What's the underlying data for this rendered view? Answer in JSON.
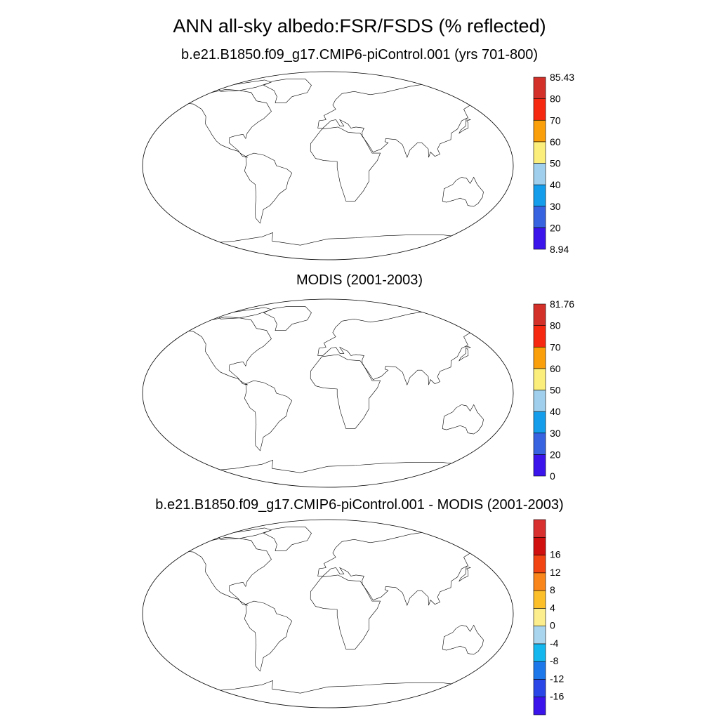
{
  "title": "ANN all-sky albedo:FSR/FSDS (% reflected)",
  "panels": [
    {
      "id": "model",
      "subtitle": "b.e21.B1850.f09_g17.CMIP6-piControl.001 (yrs 701-800)",
      "colorbar": {
        "colors": [
          "#3a14ea",
          "#3762e0",
          "#139dea",
          "#9fcfec",
          "#fcee7a",
          "#fa9e09",
          "#f62810",
          "#d4302a"
        ],
        "labels": [
          "8.94",
          "20",
          "30",
          "40",
          "50",
          "60",
          "70",
          "80",
          "85.43"
        ],
        "min": 8.94,
        "max": 85.43
      }
    },
    {
      "id": "obs",
      "subtitle": "MODIS (2001-2003)",
      "colorbar": {
        "colors": [
          "#3a14ea",
          "#3762e0",
          "#139dea",
          "#9fcfec",
          "#fcee7a",
          "#fa9e09",
          "#f62810",
          "#d4302a"
        ],
        "labels": [
          "0",
          "20",
          "30",
          "40",
          "50",
          "60",
          "70",
          "80",
          "81.76"
        ],
        "min": 0,
        "max": 81.76
      }
    },
    {
      "id": "diff",
      "subtitle": "b.e21.B1850.f09_g17.CMIP6-piControl.001 - MODIS (2001-2003)",
      "colorbar": {
        "colors": [
          "#3a14ea",
          "#2a46e6",
          "#1c78ea",
          "#14b8ee",
          "#a9d6ee",
          "#fcee8c",
          "#fcbf2a",
          "#f8861a",
          "#f24412",
          "#d0100e",
          "#d82f2f"
        ],
        "labels": [
          "-16",
          "-12",
          "-8",
          "-4",
          "0",
          "4",
          "8",
          "12",
          "16"
        ]
      }
    }
  ]
}
